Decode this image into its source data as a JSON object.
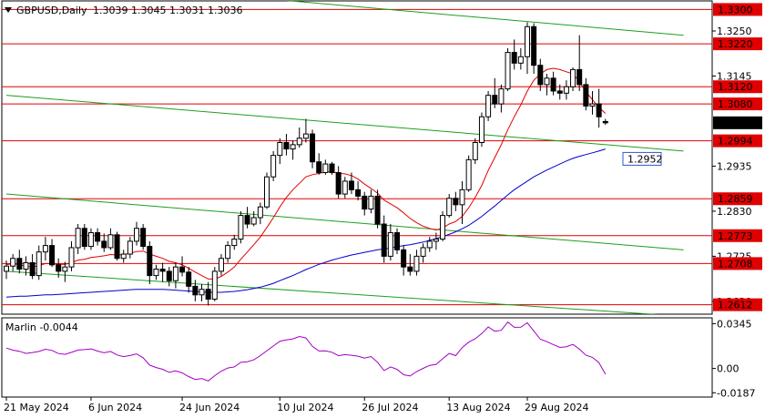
{
  "header": {
    "symbol": "GBPUSD,Daily",
    "ohlc": "1.3039 1.3045 1.3031 1.3036"
  },
  "indicator_label": "Marlin -0.0044",
  "colors": {
    "bull": "#ffffff",
    "bear": "#000000",
    "candle_outline": "#000000",
    "resistance": "#e00000",
    "trend": "#1e9e1e",
    "ma_fast": "#e00000",
    "ma_slow": "#0000cc",
    "osc": "#a000c0",
    "price_tag": "#000000",
    "label_box": "#3355cc"
  },
  "chart_data": [
    {
      "type": "candlestick",
      "symbol": "GBPUSD",
      "timeframe": "Daily",
      "x_labels": [
        "21 May 2024",
        "6 Jun 2024",
        "24 Jun 2024",
        "10 Jul 2024",
        "26 Jul 2024",
        "13 Aug 2024",
        "29 Aug 2024"
      ],
      "y_ticks": [
        "1.3250",
        "1.3145",
        "1.2935",
        "1.2830",
        "1.2725",
        "1.2620"
      ],
      "ylim": [
        1.259,
        1.332
      ],
      "levels": [
        {
          "value": 1.33,
          "label": "1.3300"
        },
        {
          "value": 1.322,
          "label": "1.3220"
        },
        {
          "value": 1.312,
          "label": "1.3120"
        },
        {
          "value": 1.308,
          "label": "1.3080"
        },
        {
          "value": 1.2994,
          "label": "1.2994"
        },
        {
          "value": 1.2859,
          "label": "1.2859"
        },
        {
          "value": 1.2773,
          "label": "1.2773"
        },
        {
          "value": 1.2708,
          "label": "1.2708"
        },
        {
          "value": 1.2612,
          "label": "1.2612"
        }
      ],
      "current_price": {
        "value": 1.3036,
        "label": "1.3036"
      },
      "ma_label": {
        "value": 1.2952,
        "label": "1.2952"
      },
      "trendlines": [
        {
          "start": [
            0,
            1.3378
          ],
          "end": [
            104,
            1.324
          ]
        },
        {
          "start": [
            0,
            1.31
          ],
          "end": [
            104,
            1.297
          ]
        },
        {
          "start": [
            0,
            1.287
          ],
          "end": [
            104,
            1.274
          ]
        },
        {
          "start": [
            0,
            1.269
          ],
          "end": [
            104,
            1.2585
          ]
        }
      ],
      "candles": [
        [
          1.269,
          1.2715,
          1.2672,
          1.2702
        ],
        [
          1.2702,
          1.273,
          1.269,
          1.272
        ],
        [
          1.272,
          1.274,
          1.2685,
          1.2695
        ],
        [
          1.2695,
          1.2725,
          1.268,
          1.271
        ],
        [
          1.271,
          1.273,
          1.2672,
          1.268
        ],
        [
          1.268,
          1.275,
          1.267,
          1.2735
        ],
        [
          1.2735,
          1.277,
          1.2715,
          1.275
        ],
        [
          1.275,
          1.2765,
          1.27,
          1.2705
        ],
        [
          1.2705,
          1.272,
          1.2675,
          1.269
        ],
        [
          1.269,
          1.2712,
          1.2665,
          1.27
        ],
        [
          1.27,
          1.276,
          1.269,
          1.2745
        ],
        [
          1.2745,
          1.28,
          1.273,
          1.279
        ],
        [
          1.279,
          1.28,
          1.274,
          1.2748
        ],
        [
          1.2748,
          1.279,
          1.274,
          1.278
        ],
        [
          1.278,
          1.279,
          1.275,
          1.276
        ],
        [
          1.276,
          1.2778,
          1.2735,
          1.2745
        ],
        [
          1.2745,
          1.279,
          1.274,
          1.2775
        ],
        [
          1.2775,
          1.2782,
          1.2715,
          1.272
        ],
        [
          1.272,
          1.274,
          1.271,
          1.273
        ],
        [
          1.273,
          1.277,
          1.272,
          1.276
        ],
        [
          1.276,
          1.2805,
          1.275,
          1.279
        ],
        [
          1.279,
          1.28,
          1.274,
          1.2748
        ],
        [
          1.2748,
          1.276,
          1.266,
          1.268
        ],
        [
          1.268,
          1.2705,
          1.267,
          1.2695
        ],
        [
          1.2695,
          1.271,
          1.2665,
          1.269
        ],
        [
          1.269,
          1.27,
          1.2655,
          1.2668
        ],
        [
          1.2668,
          1.271,
          1.265,
          1.27
        ],
        [
          1.27,
          1.2725,
          1.2678,
          1.2688
        ],
        [
          1.2688,
          1.27,
          1.264,
          1.2655
        ],
        [
          1.2655,
          1.267,
          1.262,
          1.2635
        ],
        [
          1.2635,
          1.266,
          1.262,
          1.2648
        ],
        [
          1.2648,
          1.2665,
          1.261,
          1.2625
        ],
        [
          1.2625,
          1.27,
          1.262,
          1.269
        ],
        [
          1.269,
          1.273,
          1.268,
          1.272
        ],
        [
          1.272,
          1.276,
          1.271,
          1.275
        ],
        [
          1.275,
          1.2775,
          1.274,
          1.2765
        ],
        [
          1.2765,
          1.283,
          1.2755,
          1.282
        ],
        [
          1.282,
          1.284,
          1.279,
          1.28
        ],
        [
          1.28,
          1.283,
          1.2795,
          1.2815
        ],
        [
          1.2815,
          1.285,
          1.28,
          1.284
        ],
        [
          1.284,
          1.292,
          1.2835,
          1.291
        ],
        [
          1.291,
          1.297,
          1.29,
          1.296
        ],
        [
          1.296,
          1.3,
          1.294,
          1.299
        ],
        [
          1.299,
          1.301,
          1.296,
          1.2975
        ],
        [
          1.2975,
          1.2995,
          1.295,
          1.2985
        ],
        [
          1.2985,
          1.3025,
          1.2978,
          1.3
        ],
        [
          1.3,
          1.3045,
          1.299,
          1.301
        ],
        [
          1.301,
          1.302,
          1.293,
          1.2945
        ],
        [
          1.2945,
          1.2965,
          1.2915,
          1.292
        ],
        [
          1.292,
          1.295,
          1.2915,
          1.294
        ],
        [
          1.294,
          1.2945,
          1.2915,
          1.292
        ],
        [
          1.292,
          1.2935,
          1.286,
          1.287
        ],
        [
          1.287,
          1.291,
          1.286,
          1.29
        ],
        [
          1.29,
          1.292,
          1.287,
          1.288
        ],
        [
          1.288,
          1.29,
          1.2855,
          1.2865
        ],
        [
          1.2865,
          1.2875,
          1.282,
          1.2835
        ],
        [
          1.2835,
          1.288,
          1.2825,
          1.2865
        ],
        [
          1.2865,
          1.288,
          1.279,
          1.28
        ],
        [
          1.28,
          1.282,
          1.271,
          1.2725
        ],
        [
          1.2725,
          1.28,
          1.2715,
          1.278
        ],
        [
          1.278,
          1.279,
          1.273,
          1.274
        ],
        [
          1.274,
          1.275,
          1.268,
          1.27
        ],
        [
          1.27,
          1.273,
          1.268,
          1.269
        ],
        [
          1.269,
          1.274,
          1.268,
          1.2725
        ],
        [
          1.2725,
          1.2755,
          1.271,
          1.2745
        ],
        [
          1.2745,
          1.277,
          1.2735,
          1.276
        ],
        [
          1.276,
          1.278,
          1.274,
          1.2765
        ],
        [
          1.2765,
          1.283,
          1.276,
          1.282
        ],
        [
          1.282,
          1.287,
          1.2815,
          1.286
        ],
        [
          1.286,
          1.2875,
          1.283,
          1.2845
        ],
        [
          1.2845,
          1.29,
          1.28,
          1.288
        ],
        [
          1.288,
          1.296,
          1.2875,
          1.295
        ],
        [
          1.295,
          1.3,
          1.294,
          1.299
        ],
        [
          1.299,
          1.306,
          1.298,
          1.305
        ],
        [
          1.305,
          1.311,
          1.304,
          1.31
        ],
        [
          1.31,
          1.314,
          1.307,
          1.308
        ],
        [
          1.308,
          1.3125,
          1.306,
          1.3115
        ],
        [
          1.3115,
          1.321,
          1.311,
          1.32
        ],
        [
          1.32,
          1.323,
          1.316,
          1.3175
        ],
        [
          1.3175,
          1.321,
          1.316,
          1.319
        ],
        [
          1.319,
          1.327,
          1.315,
          1.326
        ],
        [
          1.326,
          1.3268,
          1.315,
          1.317
        ],
        [
          1.317,
          1.3185,
          1.311,
          1.3125
        ],
        [
          1.3125,
          1.315,
          1.31,
          1.314
        ],
        [
          1.314,
          1.3155,
          1.31,
          1.311
        ],
        [
          1.311,
          1.3125,
          1.309,
          1.3105
        ],
        [
          1.3105,
          1.3135,
          1.309,
          1.312
        ],
        [
          1.312,
          1.3165,
          1.311,
          1.316
        ],
        [
          1.316,
          1.324,
          1.311,
          1.3125
        ],
        [
          1.3125,
          1.314,
          1.3065,
          1.3075
        ],
        [
          1.3075,
          1.311,
          1.3055,
          1.308
        ],
        [
          1.308,
          1.3115,
          1.3025,
          1.305
        ],
        [
          1.3039,
          1.3045,
          1.3031,
          1.3036
        ]
      ],
      "ma_fast": [
        1.2705,
        1.2708,
        1.2705,
        1.2702,
        1.27,
        1.2703,
        1.2708,
        1.2708,
        1.2706,
        1.2706,
        1.271,
        1.2716,
        1.2718,
        1.2722,
        1.2724,
        1.2726,
        1.2729,
        1.2728,
        1.2729,
        1.2732,
        1.2736,
        1.2737,
        1.273,
        1.2725,
        1.272,
        1.2713,
        1.271,
        1.2705,
        1.2697,
        1.2688,
        1.268,
        1.2672,
        1.2672,
        1.2678,
        1.2688,
        1.27,
        1.2718,
        1.2735,
        1.2752,
        1.277,
        1.2792,
        1.2815,
        1.284,
        1.2862,
        1.288,
        1.2895,
        1.291,
        1.2915,
        1.2918,
        1.2921,
        1.2922,
        1.2918,
        1.2917,
        1.2913,
        1.2905,
        1.2893,
        1.2883,
        1.2872,
        1.2856,
        1.2847,
        1.2838,
        1.2826,
        1.2813,
        1.2803,
        1.2795,
        1.279,
        1.2786,
        1.2791,
        1.28,
        1.2806,
        1.2818,
        1.2838,
        1.2862,
        1.289,
        1.2925,
        1.2955,
        1.2985,
        1.302,
        1.305,
        1.3078,
        1.311,
        1.3135,
        1.315,
        1.316,
        1.3163,
        1.316,
        1.3155,
        1.315,
        1.3132,
        1.3108,
        1.309,
        1.3072,
        1.3058
      ],
      "ma_slow": [
        1.263,
        1.2631,
        1.2632,
        1.2632,
        1.2633,
        1.2634,
        1.2635,
        1.2635,
        1.2636,
        1.2637,
        1.2638,
        1.2639,
        1.264,
        1.2641,
        1.2642,
        1.2643,
        1.2644,
        1.2645,
        1.2646,
        1.2647,
        1.2648,
        1.2648,
        1.2648,
        1.2648,
        1.2648,
        1.2647,
        1.2646,
        1.2645,
        1.2644,
        1.2643,
        1.2642,
        1.2641,
        1.2641,
        1.2641,
        1.2642,
        1.2643,
        1.2645,
        1.2647,
        1.265,
        1.2653,
        1.2657,
        1.2662,
        1.2668,
        1.2674,
        1.268,
        1.2687,
        1.2694,
        1.27,
        1.2706,
        1.2711,
        1.2716,
        1.272,
        1.2724,
        1.2728,
        1.2731,
        1.2734,
        1.2737,
        1.274,
        1.2742,
        1.2744,
        1.2747,
        1.275,
        1.2752,
        1.2755,
        1.2758,
        1.2762,
        1.2766,
        1.2771,
        1.2776,
        1.2782,
        1.2789,
        1.2797,
        1.2807,
        1.2818,
        1.283,
        1.2842,
        1.2855,
        1.2868,
        1.288,
        1.289,
        1.29,
        1.291,
        1.2918,
        1.2926,
        1.2933,
        1.294,
        1.2947,
        1.2953,
        1.2958,
        1.2962,
        1.2966,
        1.297,
        1.2975
      ]
    },
    {
      "type": "line",
      "title": "Marlin -0.0044",
      "y_ticks": [
        "0.0345",
        "0.00",
        "-0.0187"
      ],
      "ylim": [
        -0.022,
        0.039
      ],
      "series": [
        {
          "values": [
            0.0157,
            0.0141,
            0.0133,
            0.0116,
            0.0123,
            0.0131,
            0.0148,
            0.0139,
            0.0115,
            0.0109,
            0.0124,
            0.0142,
            0.0145,
            0.0151,
            0.0134,
            0.0121,
            0.0131,
            0.0104,
            0.0091,
            0.01,
            0.0112,
            0.0082,
            0.0026,
            0.0007,
            -0.0006,
            -0.003,
            -0.0018,
            -0.0034,
            -0.0062,
            -0.0085,
            -0.0077,
            -0.0096,
            -0.0055,
            -0.002,
            0.0004,
            0.0012,
            0.0047,
            0.0052,
            0.0067,
            0.0099,
            0.0137,
            0.0173,
            0.021,
            0.022,
            0.0228,
            0.0246,
            0.0235,
            0.017,
            0.0135,
            0.0136,
            0.0125,
            0.0098,
            0.0107,
            0.0102,
            0.0095,
            0.008,
            0.0092,
            0.0048,
            -0.0016,
            0.0012,
            -0.0007,
            -0.0048,
            -0.0058,
            -0.0024,
            0.0001,
            0.0024,
            0.0032,
            0.0075,
            0.0116,
            0.0099,
            0.0161,
            0.0203,
            0.0229,
            0.0269,
            0.032,
            0.0287,
            0.0294,
            0.0358,
            0.0317,
            0.0318,
            0.0352,
            0.0289,
            0.0225,
            0.0206,
            0.0184,
            0.0162,
            0.0168,
            0.0185,
            0.0149,
            0.0102,
            0.0086,
            0.0045,
            -0.0044
          ]
        }
      ]
    }
  ]
}
